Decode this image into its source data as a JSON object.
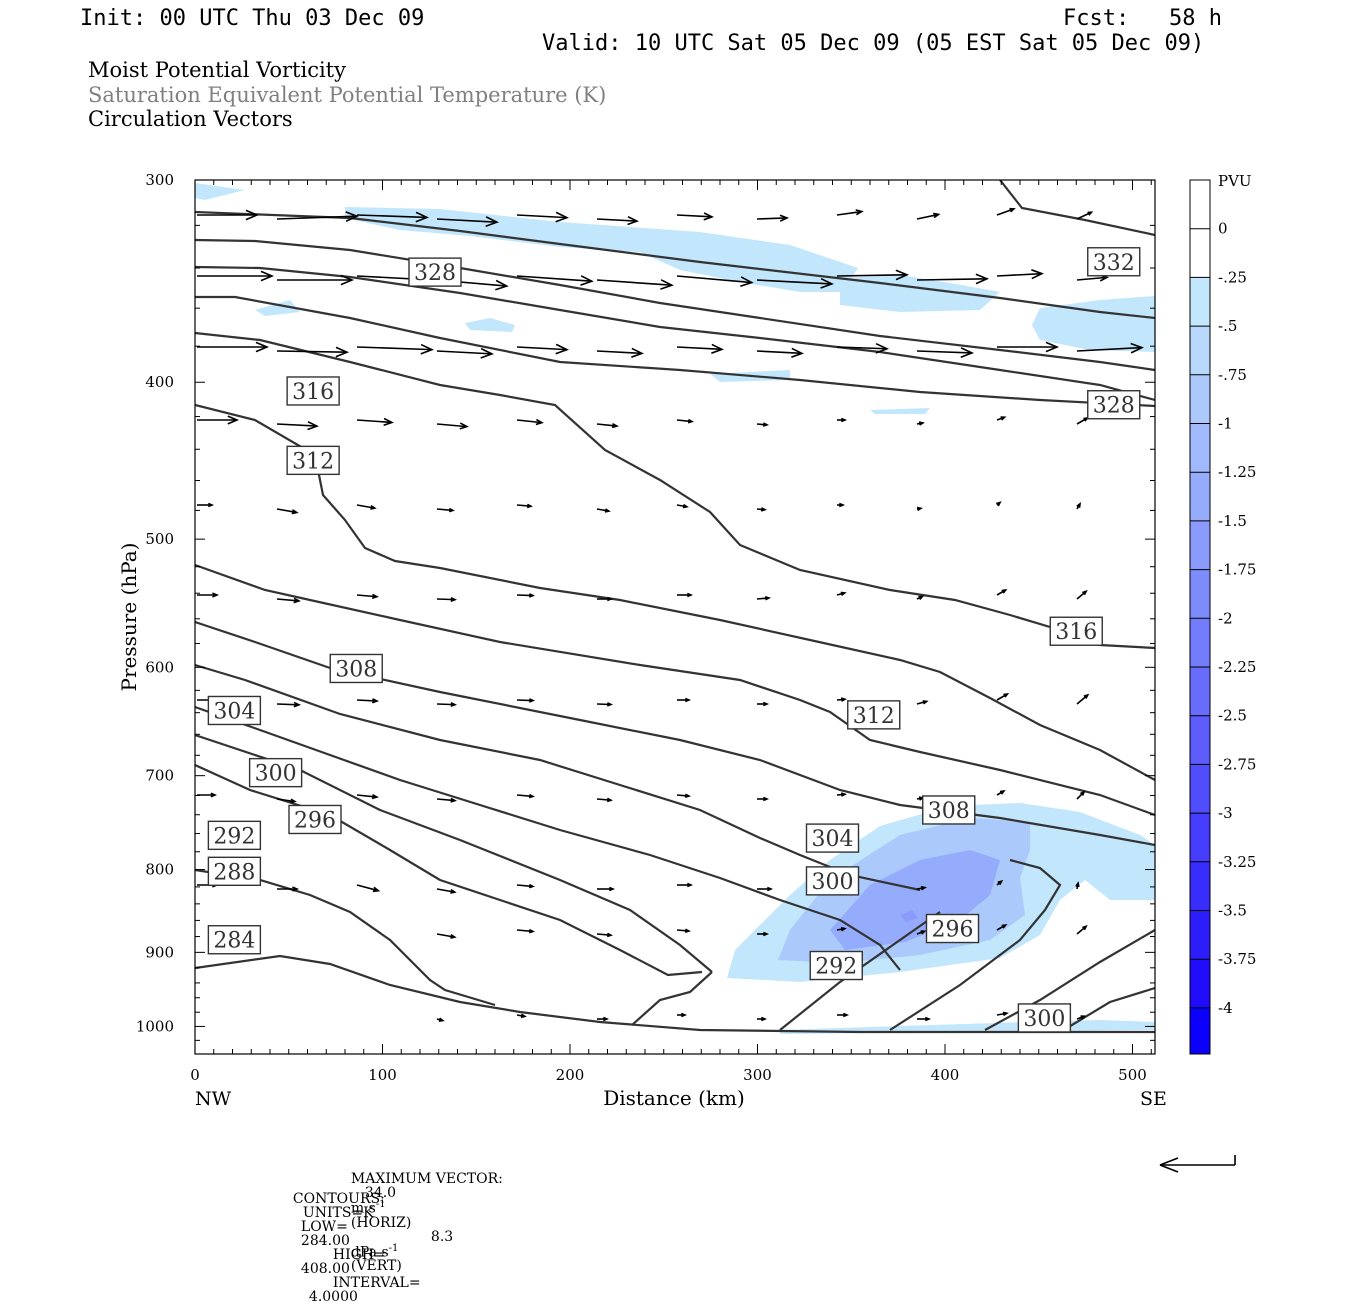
{
  "header": {
    "init": "Init: 00 UTC Thu 03 Dec 09",
    "fcst": "Fcst:   58 h",
    "valid": "Valid: 10 UTC Sat 05 Dec 09 (05 EST Sat 05 Dec 09)"
  },
  "fields": [
    "Moist Potential Vorticity",
    "Saturation Equivalent Potential Temperature (K)",
    "Circulation Vectors"
  ],
  "chart_data": {
    "type": "contour",
    "xlabel": "Distance (km)",
    "ylabel": "Pressure (hPa)",
    "xlim": [
      0,
      512
    ],
    "ylim": [
      1040,
      300
    ],
    "y_scale": "log-pressure",
    "x_ticks": [
      "0",
      "100",
      "200",
      "300",
      "400",
      "500"
    ],
    "y_ticks": [
      "300",
      "400",
      "500",
      "600",
      "700",
      "800",
      "900",
      "1000"
    ],
    "x_end_labels": {
      "left": "NW",
      "right": "SE"
    },
    "contour_labels": [
      {
        "text": "332",
        "x": 490,
        "p": 337
      },
      {
        "text": "328",
        "x": 128,
        "p": 342
      },
      {
        "text": "328",
        "x": 490,
        "p": 413
      },
      {
        "text": "316",
        "x": 63,
        "p": 405
      },
      {
        "text": "312",
        "x": 63,
        "p": 447
      },
      {
        "text": "316",
        "x": 470,
        "p": 570
      },
      {
        "text": "308",
        "x": 86,
        "p": 601
      },
      {
        "text": "312",
        "x": 362,
        "p": 642
      },
      {
        "text": "304",
        "x": 21,
        "p": 638
      },
      {
        "text": "300",
        "x": 43,
        "p": 697
      },
      {
        "text": "308",
        "x": 402,
        "p": 735
      },
      {
        "text": "296",
        "x": 64,
        "p": 745
      },
      {
        "text": "304",
        "x": 340,
        "p": 765
      },
      {
        "text": "292",
        "x": 21,
        "p": 762
      },
      {
        "text": "300",
        "x": 340,
        "p": 813
      },
      {
        "text": "288",
        "x": 21,
        "p": 802
      },
      {
        "text": "296",
        "x": 404,
        "p": 870
      },
      {
        "text": "292",
        "x": 342,
        "p": 917
      },
      {
        "text": "284",
        "x": 21,
        "p": 884
      },
      {
        "text": "300",
        "x": 453,
        "p": 988
      }
    ],
    "colorbar": {
      "title": "PVU",
      "levels": [
        "0",
        "-.25",
        "-.5",
        "-.75",
        "-1",
        "-1.25",
        "-1.5",
        "-1.75",
        "-2",
        "-2.25",
        "-2.5",
        "-2.75",
        "-3",
        "-3.25",
        "-3.5",
        "-3.75",
        "-4"
      ],
      "colors": [
        "#ffffff",
        "#ffffff",
        "#c2e6fb",
        "#b7d8fb",
        "#acc9fb",
        "#a0bafb",
        "#95abfb",
        "#8a9bfb",
        "#7e8cfb",
        "#737cfb",
        "#676cfb",
        "#5c5cfb",
        "#504dfb",
        "#453dfb",
        "#392dfb",
        "#2d1dfb",
        "#200cfb",
        "#0a00fb"
      ]
    },
    "max_vector": {
      "label": "MAXIMUM VECTOR:",
      "horiz_value": "34.0",
      "horiz_unit": "m s",
      "horiz_exp": "-1",
      "horiz_tag": "(HORIZ)",
      "vert_value": "8.3",
      "vert_unit": "dPa s",
      "vert_exp": "-1",
      "vert_tag": "(VERT)"
    },
    "contour_info": {
      "contours": "CONTOURS:",
      "units": "UNITS=K",
      "low": "LOW=",
      "low_value": "284.00",
      "high": "HIGH=",
      "high_value": "408.00",
      "interval": "INTERVAL=",
      "interval_value": "4.0000"
    }
  }
}
